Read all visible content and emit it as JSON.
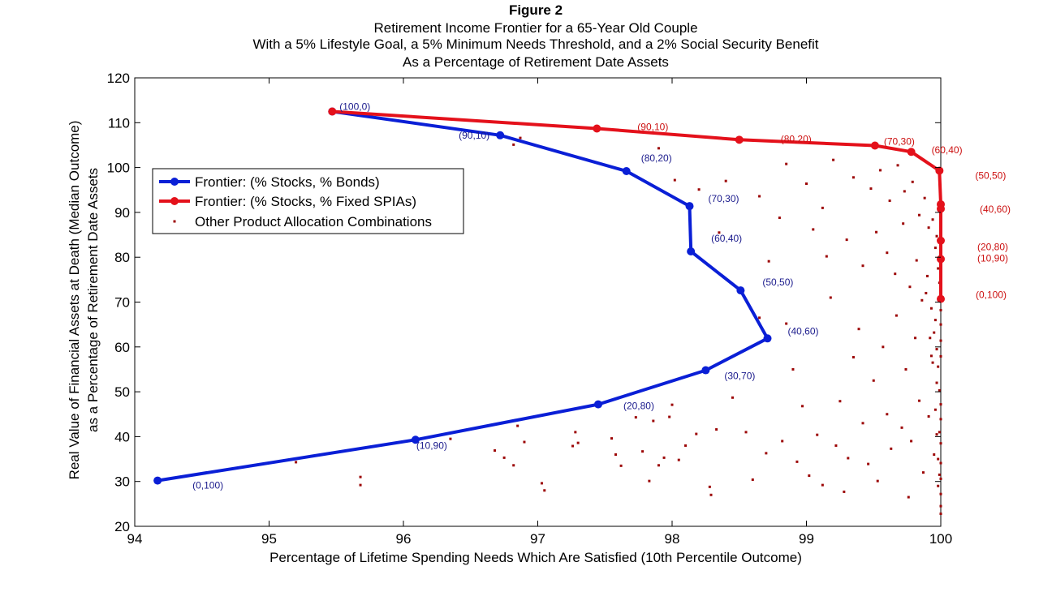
{
  "chart_data": {
    "type": "scatter",
    "title_lines": [
      "Figure 2",
      "Retirement Income Frontier for a 65-Year Old Couple",
      "With a 5% Lifestyle Goal, a 5% Minimum Needs Threshold, and a 2% Social Security Benefit",
      "As a Percentage of Retirement Date Assets"
    ],
    "xlabel": "Percentage of Lifetime Spending Needs Which Are Satisfied (10th Percentile Outcome)",
    "ylabel_lines": [
      "Real Value of Financial Assets at Death (Median Outcome)",
      "as a Percentage of Retirement Date Assets"
    ],
    "xlim": [
      94,
      100
    ],
    "ylim": [
      20,
      120
    ],
    "xticks": [
      "94",
      "95",
      "96",
      "97",
      "98",
      "99",
      "100"
    ],
    "yticks": [
      "20",
      "30",
      "40",
      "50",
      "60",
      "70",
      "80",
      "90",
      "100",
      "110",
      "120"
    ],
    "legend": [
      "Frontier: (% Stocks, % Bonds)",
      "Frontier: (% Stocks, % Fixed SPIAs)",
      "Other Product Allocation Combinations"
    ],
    "colors": {
      "bonds": "#0a1fd6",
      "spias": "#e4111b",
      "other": "#9c0606",
      "bond_label": "#1a1a8c",
      "spia_label": "#cc1010"
    },
    "series": [
      {
        "name": "Frontier: (% Stocks, % Bonds)",
        "points": [
          {
            "x": 94.17,
            "y": 30.2,
            "label": "(0,100)"
          },
          {
            "x": 96.09,
            "y": 39.3,
            "label": "(10,90)"
          },
          {
            "x": 97.45,
            "y": 47.2,
            "label": "(20,80)"
          },
          {
            "x": 98.25,
            "y": 54.8,
            "label": "(30,70)"
          },
          {
            "x": 98.71,
            "y": 61.9,
            "label": "(40,60)"
          },
          {
            "x": 98.51,
            "y": 72.6,
            "label": "(50,50)"
          },
          {
            "x": 98.14,
            "y": 81.3,
            "label": "(60,40)"
          },
          {
            "x": 98.13,
            "y": 91.4,
            "label": "(70,30)"
          },
          {
            "x": 97.66,
            "y": 99.2,
            "label": "(80,20)"
          },
          {
            "x": 96.72,
            "y": 107.2,
            "label": "(90,10)"
          },
          {
            "x": 95.47,
            "y": 112.5,
            "label": "(100,0)"
          }
        ]
      },
      {
        "name": "Frontier: (% Stocks, % Fixed SPIAs)",
        "points": [
          {
            "x": 95.47,
            "y": 112.5,
            "label": ""
          },
          {
            "x": 97.44,
            "y": 108.7,
            "label": "(90,10)"
          },
          {
            "x": 98.5,
            "y": 106.2,
            "label": "(80,20)"
          },
          {
            "x": 99.51,
            "y": 104.9,
            "label": "(70,30)"
          },
          {
            "x": 99.78,
            "y": 103.5,
            "label": "(60,40)"
          },
          {
            "x": 99.99,
            "y": 99.3,
            "label": "(50,50)"
          },
          {
            "x": 100.0,
            "y": 91.8,
            "label": "(40,60)"
          },
          {
            "x": 100.0,
            "y": 90.8,
            "label": ""
          },
          {
            "x": 100.0,
            "y": 83.7,
            "label": "(20,80)"
          },
          {
            "x": 100.0,
            "y": 79.6,
            "label": "(10,90)"
          },
          {
            "x": 100.0,
            "y": 70.7,
            "label": "(0,100)"
          }
        ]
      }
    ],
    "other_points": [
      [
        95.2,
        34.3
      ],
      [
        95.68,
        29.2
      ],
      [
        95.68,
        31.0
      ],
      [
        96.35,
        39.5
      ],
      [
        96.68,
        36.9
      ],
      [
        96.75,
        35.3
      ],
      [
        96.82,
        33.6
      ],
      [
        96.85,
        42.4
      ],
      [
        96.9,
        38.8
      ],
      [
        97.05,
        28.0
      ],
      [
        97.03,
        29.6
      ],
      [
        96.82,
        105.1
      ],
      [
        96.87,
        106.6
      ],
      [
        97.26,
        37.9
      ],
      [
        97.28,
        41.0
      ],
      [
        97.3,
        38.6
      ],
      [
        97.55,
        39.6
      ],
      [
        97.58,
        36.0
      ],
      [
        97.62,
        33.5
      ],
      [
        97.73,
        44.3
      ],
      [
        97.78,
        36.7
      ],
      [
        97.83,
        30.1
      ],
      [
        97.86,
        43.5
      ],
      [
        97.9,
        33.6
      ],
      [
        97.94,
        35.3
      ],
      [
        97.98,
        44.4
      ],
      [
        98.0,
        47.1
      ],
      [
        98.05,
        34.8
      ],
      [
        98.1,
        38.0
      ],
      [
        98.18,
        40.6
      ],
      [
        98.28,
        28.8
      ],
      [
        98.33,
        41.6
      ],
      [
        98.35,
        85.5
      ],
      [
        98.29,
        27.0
      ],
      [
        98.45,
        48.7
      ],
      [
        98.55,
        41.0
      ],
      [
        98.6,
        30.4
      ],
      [
        98.7,
        36.3
      ],
      [
        98.72,
        79.1
      ],
      [
        98.65,
        66.5
      ],
      [
        98.82,
        39.0
      ],
      [
        98.85,
        65.2
      ],
      [
        98.9,
        55.0
      ],
      [
        98.93,
        34.4
      ],
      [
        98.97,
        46.8
      ],
      [
        99.02,
        31.3
      ],
      [
        99.08,
        40.4
      ],
      [
        99.12,
        29.2
      ],
      [
        99.18,
        71.0
      ],
      [
        99.22,
        38.0
      ],
      [
        99.25,
        47.9
      ],
      [
        99.28,
        27.7
      ],
      [
        99.31,
        35.2
      ],
      [
        99.35,
        57.7
      ],
      [
        99.39,
        64.0
      ],
      [
        99.42,
        43.0
      ],
      [
        99.46,
        33.9
      ],
      [
        99.5,
        52.5
      ],
      [
        99.53,
        30.1
      ],
      [
        99.57,
        60.0
      ],
      [
        99.6,
        45.0
      ],
      [
        99.63,
        37.3
      ],
      [
        99.67,
        67.0
      ],
      [
        99.71,
        42.0
      ],
      [
        99.74,
        55.0
      ],
      [
        99.76,
        26.5
      ],
      [
        99.78,
        39.0
      ],
      [
        99.81,
        62.0
      ],
      [
        99.84,
        48.0
      ],
      [
        99.87,
        32.0
      ],
      [
        99.89,
        72.0
      ],
      [
        99.91,
        44.5
      ],
      [
        99.93,
        58.0
      ],
      [
        99.95,
        36.0
      ],
      [
        99.96,
        66.0
      ],
      [
        99.97,
        52.0
      ],
      [
        99.98,
        29.0
      ],
      [
        99.99,
        41.0
      ],
      [
        97.9,
        104.3
      ],
      [
        98.02,
        97.2
      ],
      [
        98.2,
        95.1
      ],
      [
        98.4,
        97.0
      ],
      [
        98.65,
        93.6
      ],
      [
        98.85,
        100.8
      ],
      [
        99.0,
        96.4
      ],
      [
        99.12,
        91.0
      ],
      [
        99.2,
        101.7
      ],
      [
        99.35,
        97.8
      ],
      [
        99.48,
        95.3
      ],
      [
        99.55,
        99.4
      ],
      [
        99.62,
        92.6
      ],
      [
        99.68,
        100.5
      ],
      [
        99.73,
        94.7
      ],
      [
        99.79,
        96.8
      ],
      [
        99.84,
        89.4
      ],
      [
        99.88,
        93.2
      ],
      [
        99.91,
        86.6
      ],
      [
        99.94,
        88.4
      ],
      [
        99.96,
        82.1
      ],
      [
        99.97,
        84.7
      ],
      [
        99.98,
        77.5
      ],
      [
        99.99,
        74.3
      ],
      [
        98.8,
        88.8
      ],
      [
        99.05,
        86.2
      ],
      [
        99.15,
        80.2
      ],
      [
        99.3,
        83.9
      ],
      [
        99.42,
        78.1
      ],
      [
        99.52,
        85.6
      ],
      [
        99.6,
        81.0
      ],
      [
        99.66,
        76.3
      ],
      [
        99.72,
        87.5
      ],
      [
        99.77,
        73.4
      ],
      [
        99.82,
        79.3
      ],
      [
        99.86,
        70.4
      ],
      [
        99.9,
        75.8
      ],
      [
        99.93,
        68.6
      ],
      [
        99.95,
        63.2
      ],
      [
        99.97,
        59.5
      ],
      [
        99.98,
        55.6
      ],
      [
        99.99,
        50.3
      ],
      [
        100.0,
        47.2
      ],
      [
        100.0,
        43.9
      ],
      [
        100.0,
        38.5
      ],
      [
        100.0,
        34.1
      ],
      [
        100.0,
        30.6
      ],
      [
        100.0,
        27.2
      ],
      [
        100.0,
        24.5
      ],
      [
        100.0,
        22.8
      ],
      [
        100.0,
        57.9
      ],
      [
        100.0,
        61.4
      ],
      [
        100.0,
        65.0
      ],
      [
        100.0,
        68.2
      ],
      [
        99.92,
        62.0
      ],
      [
        99.94,
        56.5
      ],
      [
        99.96,
        46.0
      ],
      [
        99.97,
        40.5
      ],
      [
        99.98,
        35.0
      ],
      [
        99.99,
        31.5
      ]
    ]
  }
}
